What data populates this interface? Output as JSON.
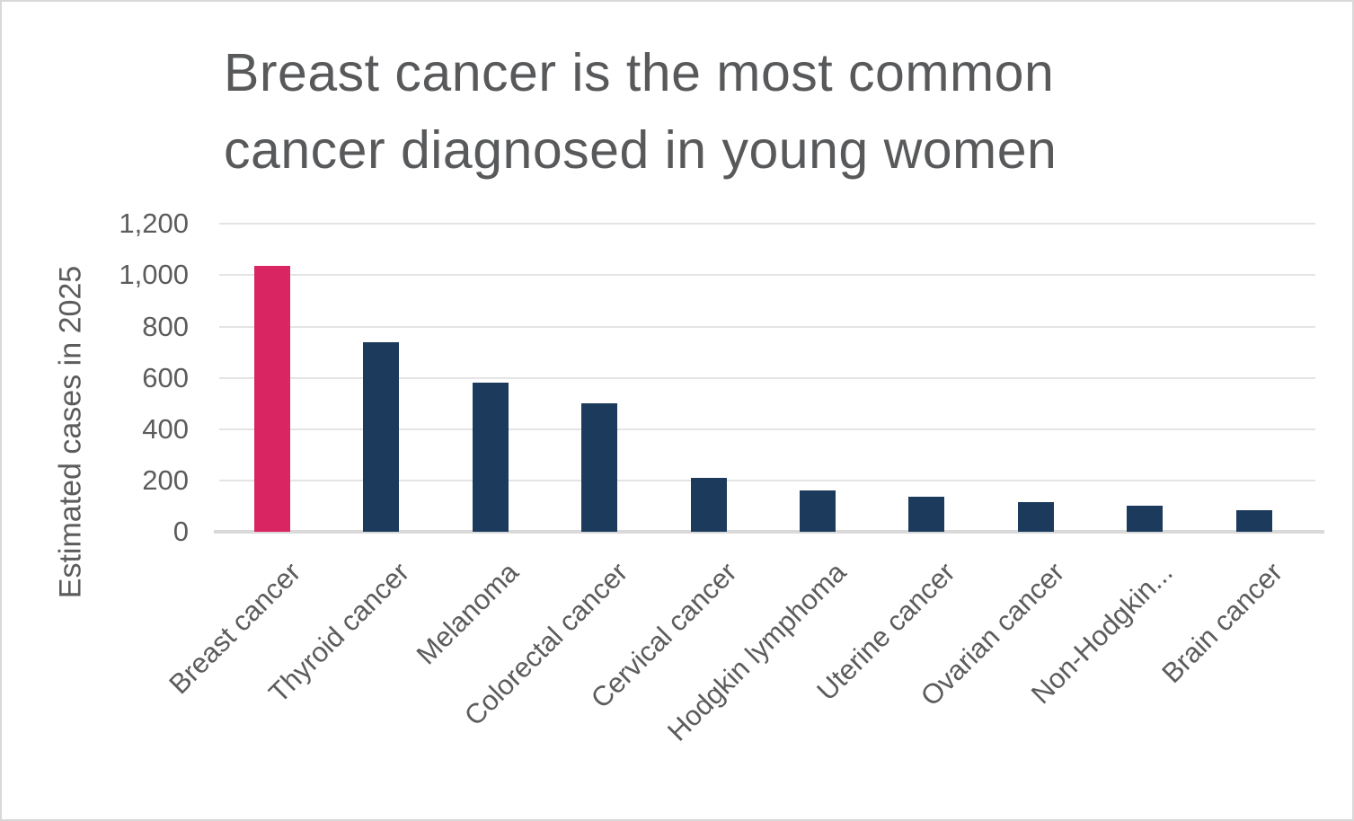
{
  "page": {
    "background": "#ffffff",
    "border_color": "#d8d8d8"
  },
  "chart_data": {
    "type": "bar",
    "title": "Breast cancer is the most common cancer diagnosed in young women",
    "title_lines": [
      "Breast cancer is the most common",
      "cancer diagnosed in young women"
    ],
    "ylabel": "Estimated cases in 2025",
    "xlabel": "",
    "categories": [
      "Breast cancer",
      "Thyroid cancer",
      "Melanoma",
      "Colorectal cancer",
      "Cervical cancer",
      "Hodgkin lymphoma",
      "Uterine cancer",
      "Ovarian cancer",
      "Non-Hodgkin...",
      "Brain cancer"
    ],
    "values": [
      1035,
      740,
      580,
      500,
      210,
      160,
      135,
      115,
      100,
      85
    ],
    "ylim": [
      0,
      1200
    ],
    "ytick_interval": 200,
    "yticks": [
      0,
      200,
      400,
      600,
      800,
      1000,
      1200
    ],
    "ytick_labels": [
      "0",
      "200",
      "400",
      "600",
      "800",
      "1,000",
      "1,200"
    ],
    "grid": true,
    "legend": false,
    "highlight_index": 0,
    "colors": {
      "highlight": "#d92663",
      "default": "#1b3a5c",
      "gridline": "#e4e4e4",
      "baseline": "#d9d9d9",
      "axis_text": "#5c5c5c",
      "title_text": "#58595b"
    }
  }
}
